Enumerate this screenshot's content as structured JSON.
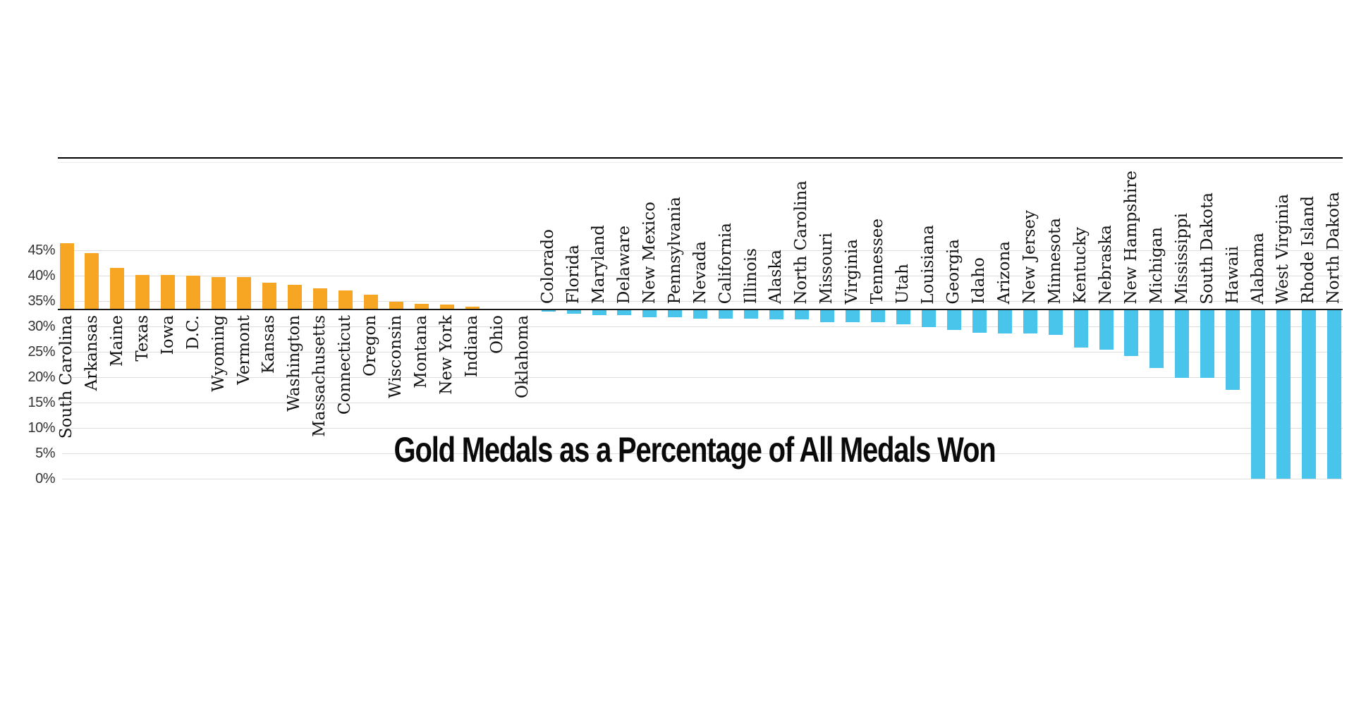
{
  "title": "Gold Medals as a Percentage of All Medals Won",
  "chart_data": {
    "type": "bar",
    "orientation": "vertical",
    "title": "Gold Medals as a Percentage of All Medals Won",
    "xlabel": "",
    "ylabel": "",
    "ylim": [
      0,
      47
    ],
    "grid": true,
    "legend": "none",
    "baseline_value": 33.33,
    "yticks": [
      {
        "label": "45%",
        "value": 45
      },
      {
        "label": "40%",
        "value": 40
      },
      {
        "label": "35%",
        "value": 35
      },
      {
        "label": "30%",
        "value": 30
      },
      {
        "label": "25%",
        "value": 25
      },
      {
        "label": "20%",
        "value": 20
      },
      {
        "label": "15%",
        "value": 15
      },
      {
        "label": "10%",
        "value": 10
      },
      {
        "label": "5%",
        "value": 5
      },
      {
        "label": "0%",
        "value": 0
      }
    ],
    "colors": {
      "above_baseline": "#F6A623",
      "below_baseline": "#49C5EC",
      "baseline_line": "#1a1a1a",
      "gridline": "#dddddd",
      "top_rule": "#000000",
      "tick_text": "#333333",
      "label_text": "#141414"
    },
    "bars": [
      {
        "state": "South Carolina",
        "value": 46.4,
        "group": "above"
      },
      {
        "state": "Arkansas",
        "value": 44.5,
        "group": "above"
      },
      {
        "state": "Maine",
        "value": 41.5,
        "group": "above"
      },
      {
        "state": "Texas",
        "value": 40.2,
        "group": "above"
      },
      {
        "state": "Iowa",
        "value": 40.2,
        "group": "above"
      },
      {
        "state": "D.C.",
        "value": 40.1,
        "group": "above"
      },
      {
        "state": "Wyoming",
        "value": 39.8,
        "group": "above"
      },
      {
        "state": "Vermont",
        "value": 39.7,
        "group": "above"
      },
      {
        "state": "Kansas",
        "value": 38.6,
        "group": "above"
      },
      {
        "state": "Washington",
        "value": 38.3,
        "group": "above"
      },
      {
        "state": "Massachusetts",
        "value": 37.6,
        "group": "above"
      },
      {
        "state": "Connecticut",
        "value": 37.1,
        "group": "above"
      },
      {
        "state": "Oregon",
        "value": 36.3,
        "group": "above"
      },
      {
        "state": "Wisconsin",
        "value": 34.9,
        "group": "above"
      },
      {
        "state": "Montana",
        "value": 34.5,
        "group": "above"
      },
      {
        "state": "New York",
        "value": 34.3,
        "group": "above"
      },
      {
        "state": "Indiana",
        "value": 33.9,
        "group": "above"
      },
      {
        "state": "Ohio",
        "value": 33.4,
        "group": "above"
      },
      {
        "state": "Oklahoma",
        "value": 33.4,
        "group": "above"
      },
      {
        "state": "Colorado",
        "value": 32.9,
        "group": "below"
      },
      {
        "state": "Florida",
        "value": 32.5,
        "group": "below"
      },
      {
        "state": "Maryland",
        "value": 32.2,
        "group": "below"
      },
      {
        "state": "Delaware",
        "value": 32.2,
        "group": "below"
      },
      {
        "state": "New Mexico",
        "value": 31.8,
        "group": "below"
      },
      {
        "state": "Pennsylvania",
        "value": 31.8,
        "group": "below"
      },
      {
        "state": "Nevada",
        "value": 31.6,
        "group": "below"
      },
      {
        "state": "California",
        "value": 31.6,
        "group": "below"
      },
      {
        "state": "Illinois",
        "value": 31.6,
        "group": "below"
      },
      {
        "state": "Alaska",
        "value": 31.4,
        "group": "below"
      },
      {
        "state": "North Carolina",
        "value": 31.4,
        "group": "below"
      },
      {
        "state": "Missouri",
        "value": 30.9,
        "group": "below"
      },
      {
        "state": "Virginia",
        "value": 30.8,
        "group": "below"
      },
      {
        "state": "Tennessee",
        "value": 30.8,
        "group": "below"
      },
      {
        "state": "Utah",
        "value": 30.5,
        "group": "below"
      },
      {
        "state": "Louisiana",
        "value": 29.9,
        "group": "below"
      },
      {
        "state": "Georgia",
        "value": 29.4,
        "group": "below"
      },
      {
        "state": "Idaho",
        "value": 28.8,
        "group": "below"
      },
      {
        "state": "Arizona",
        "value": 28.6,
        "group": "below"
      },
      {
        "state": "New Jersey",
        "value": 28.6,
        "group": "below"
      },
      {
        "state": "Minnesota",
        "value": 28.4,
        "group": "below"
      },
      {
        "state": "Kentucky",
        "value": 25.8,
        "group": "below"
      },
      {
        "state": "Nebraska",
        "value": 25.4,
        "group": "below"
      },
      {
        "state": "New Hampshire",
        "value": 24.2,
        "group": "below"
      },
      {
        "state": "Michigan",
        "value": 21.9,
        "group": "below"
      },
      {
        "state": "Mississippi",
        "value": 19.9,
        "group": "below"
      },
      {
        "state": "South Dakota",
        "value": 19.9,
        "group": "below"
      },
      {
        "state": "Hawaii",
        "value": 17.5,
        "group": "below"
      },
      {
        "state": "Alabama",
        "value": 0.0,
        "group": "below"
      },
      {
        "state": "West Virginia",
        "value": 0.0,
        "group": "below"
      },
      {
        "state": "Rhode Island",
        "value": 0.0,
        "group": "below"
      },
      {
        "state": "North Dakota",
        "value": 0.0,
        "group": "below"
      }
    ]
  }
}
